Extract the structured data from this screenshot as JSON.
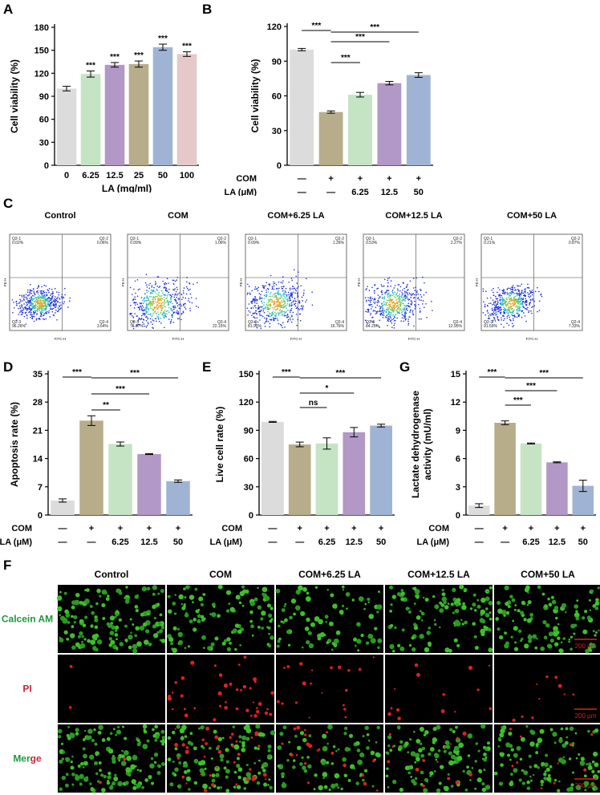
{
  "panels": {
    "A": "A",
    "B": "B",
    "C": "C",
    "D": "D",
    "E": "E",
    "G": "G",
    "F": "F"
  },
  "colors": {
    "gray": "#dcdcdc",
    "tan": "#b7ad8a",
    "green": "#c5e4c4",
    "purple": "#b198c6",
    "blue": "#9fb4d4",
    "pink": "#e4c8ca"
  },
  "chart_data": [
    {
      "id": "A",
      "type": "bar",
      "categories": [
        "0",
        "6.25",
        "12.5",
        "25",
        "50",
        "100"
      ],
      "values": [
        100,
        119,
        131,
        132,
        154,
        145
      ],
      "errors": [
        3,
        4,
        3,
        4,
        4,
        3
      ],
      "significance": [
        "",
        "***",
        "***",
        "***",
        "***",
        "***"
      ],
      "colors": [
        "#dcdcdc",
        "#c5e4c4",
        "#b198c6",
        "#b7ad8a",
        "#9fb4d4",
        "#e4c8ca"
      ],
      "xlabel": "LA (mg/ml)",
      "ylabel": "Cell viability (%)",
      "ylim": [
        0,
        180
      ],
      "yticks": [
        0,
        30,
        60,
        90,
        120,
        150,
        180
      ]
    },
    {
      "id": "B",
      "type": "bar",
      "categories": [
        "1",
        "2",
        "3",
        "4",
        "5"
      ],
      "row_labels": [
        "COM",
        "LA (μM)"
      ],
      "rows": [
        [
          "—",
          "+",
          "+",
          "+",
          "+"
        ],
        [
          "—",
          "—",
          "6.25",
          "12.5",
          "50"
        ]
      ],
      "values": [
        100,
        46,
        61,
        71,
        78
      ],
      "errors": [
        1,
        1,
        2,
        1.5,
        2
      ],
      "colors": [
        "#dcdcdc",
        "#b7ad8a",
        "#c5e4c4",
        "#b198c6",
        "#9fb4d4"
      ],
      "ylabel": "Cell viability (%)",
      "ylim": [
        0,
        120
      ],
      "yticks": [
        0,
        30,
        60,
        90,
        120
      ],
      "brackets": [
        {
          "from": 0,
          "to": 1,
          "label": "***"
        },
        {
          "from": 1,
          "to": 4,
          "label": "***"
        },
        {
          "from": 1,
          "to": 3,
          "label": "***"
        },
        {
          "from": 1,
          "to": 2,
          "label": "***"
        }
      ]
    },
    {
      "id": "D",
      "type": "bar",
      "categories": [
        "1",
        "2",
        "3",
        "4",
        "5"
      ],
      "row_labels": [
        "COM",
        "LA (μM)"
      ],
      "rows": [
        [
          "—",
          "+",
          "+",
          "+",
          "+"
        ],
        [
          "—",
          "—",
          "6.25",
          "12.5",
          "50"
        ]
      ],
      "values": [
        3.6,
        23.4,
        17.6,
        15.1,
        8.4
      ],
      "errors": [
        0.4,
        1.2,
        0.5,
        0.1,
        0.3
      ],
      "colors": [
        "#dcdcdc",
        "#b7ad8a",
        "#c5e4c4",
        "#b198c6",
        "#9fb4d4"
      ],
      "ylabel": "Apoptosis rate (%)",
      "ylim": [
        0,
        35
      ],
      "yticks": [
        0,
        7,
        14,
        21,
        28,
        35
      ],
      "brackets": [
        {
          "from": 0,
          "to": 1,
          "label": "***"
        },
        {
          "from": 1,
          "to": 4,
          "label": "***"
        },
        {
          "from": 1,
          "to": 3,
          "label": "***"
        },
        {
          "from": 1,
          "to": 2,
          "label": "**"
        }
      ]
    },
    {
      "id": "E",
      "type": "bar",
      "categories": [
        "1",
        "2",
        "3",
        "4",
        "5"
      ],
      "row_labels": [
        "COM",
        "LA (μM)"
      ],
      "rows": [
        [
          "—",
          "+",
          "+",
          "+",
          "+"
        ],
        [
          "—",
          "—",
          "6.25",
          "12.5",
          "50"
        ]
      ],
      "values": [
        99,
        75,
        76,
        88,
        95
      ],
      "errors": [
        0.5,
        2.5,
        6,
        5,
        1.5
      ],
      "colors": [
        "#dcdcdc",
        "#b7ad8a",
        "#c5e4c4",
        "#b198c6",
        "#9fb4d4"
      ],
      "ylabel": "Live cell rate (%)",
      "ylim": [
        0,
        150
      ],
      "yticks": [
        0,
        30,
        60,
        90,
        120,
        150
      ],
      "brackets": [
        {
          "from": 0,
          "to": 1,
          "label": "***"
        },
        {
          "from": 1,
          "to": 4,
          "label": "***"
        },
        {
          "from": 1,
          "to": 3,
          "label": "*"
        },
        {
          "from": 1,
          "to": 2,
          "label": "ns"
        }
      ]
    },
    {
      "id": "G",
      "type": "bar",
      "categories": [
        "1",
        "2",
        "3",
        "4",
        "5"
      ],
      "row_labels": [
        "COM",
        "LA (μM)"
      ],
      "rows": [
        [
          "—",
          "+",
          "+",
          "+",
          "+"
        ],
        [
          "—",
          "—",
          "6.25",
          "12.5",
          "50"
        ]
      ],
      "values": [
        1.0,
        9.8,
        7.6,
        5.6,
        3.1
      ],
      "errors": [
        0.2,
        0.2,
        0.05,
        0.05,
        0.6
      ],
      "colors": [
        "#dcdcdc",
        "#b7ad8a",
        "#c5e4c4",
        "#b198c6",
        "#9fb4d4"
      ],
      "ylabel": "Lactate dehydrogenase activity (mU/ml)",
      "ylabel_lines": [
        "Lactate dehydrogenase",
        "activity (mU/ml)"
      ],
      "ylim": [
        0,
        15
      ],
      "yticks": [
        0,
        3,
        6,
        9,
        12,
        15
      ],
      "brackets": [
        {
          "from": 0,
          "to": 1,
          "label": "***"
        },
        {
          "from": 1,
          "to": 4,
          "label": "***"
        },
        {
          "from": 1,
          "to": 3,
          "label": "***"
        },
        {
          "from": 1,
          "to": 2,
          "label": "***"
        }
      ]
    }
  ],
  "flow": {
    "titles": [
      "Control",
      "COM",
      "COM+6.25 LA",
      "COM+12.5 LA",
      "COM+50 LA"
    ],
    "xaxis": "FITC-H",
    "yaxis": "PE-H",
    "quadrant_names": [
      "Q2-1",
      "Q2-2",
      "Q2-3",
      "Q2-4"
    ],
    "quadrants": [
      [
        "0.02%",
        "0.06%",
        "96.26%",
        "3.64%"
      ],
      [
        "0.09%",
        "1.06%",
        "76.67%",
        "22.15%"
      ],
      [
        "0.09%",
        "1.26%",
        "81.90%",
        "16.76%"
      ],
      [
        "0.53%",
        "2.27%",
        "84.25%",
        "12.95%"
      ],
      [
        "0.21%",
        "0.87%",
        "91.59%",
        "7.33%"
      ]
    ]
  },
  "micro": {
    "columns": [
      "Control",
      "COM",
      "COM+6.25 LA",
      "COM+12.5 LA",
      "COM+50 LA"
    ],
    "rows": [
      "Calcein AM",
      "PI",
      "Merge"
    ],
    "merge_parts": [
      "Mer",
      "ge"
    ],
    "scale": "200 μm"
  }
}
